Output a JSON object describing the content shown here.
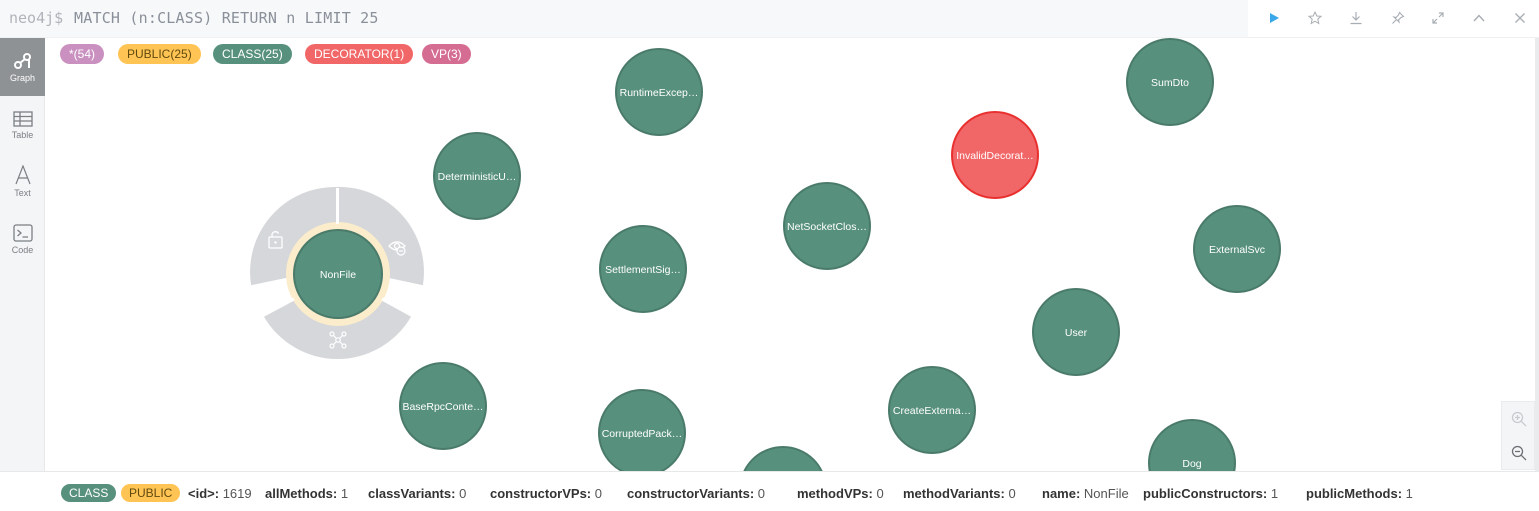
{
  "query": {
    "prompt": "neo4j$",
    "text": "MATCH (n:CLASS) RETURN n LIMIT 25"
  },
  "toolbar": {
    "icons": [
      "play-icon",
      "star-icon",
      "download-icon",
      "pin-icon",
      "expand-icon",
      "collapse-icon",
      "close-icon"
    ]
  },
  "sidebar": {
    "items": [
      {
        "label": "Graph",
        "icon": "graph-icon",
        "active": true
      },
      {
        "label": "Table",
        "icon": "table-icon",
        "active": false
      },
      {
        "label": "Text",
        "icon": "text-icon",
        "active": false
      },
      {
        "label": "Code",
        "icon": "code-icon",
        "active": false
      }
    ]
  },
  "labels": [
    {
      "text": "*(54)",
      "bg": "#c990c0",
      "fg": "#ffffff"
    },
    {
      "text": "PUBLIC(25)",
      "bg": "#ffc454",
      "fg": "#604a0e"
    },
    {
      "text": "CLASS(25)",
      "bg": "#57907d",
      "fg": "#ffffff"
    },
    {
      "text": "DECORATOR(1)",
      "bg": "#f16667",
      "fg": "#ffffff"
    },
    {
      "text": "VP(3)",
      "bg": "#d56d92",
      "fg": "#ffffff"
    }
  ],
  "graph": {
    "node_fill": "#57907d",
    "node_stroke": "#4a7b6a",
    "decorator_fill": "#f16667",
    "decorator_stroke": "#e8312f",
    "nodes": [
      {
        "label": "RuntimeExcep…",
        "kind": "class"
      },
      {
        "label": "SumDto",
        "kind": "class"
      },
      {
        "label": "DeterministicU…",
        "kind": "class"
      },
      {
        "label": "InvalidDecorat…",
        "kind": "decorator"
      },
      {
        "label": "NetSocketClos…",
        "kind": "class"
      },
      {
        "label": "SettlementSig…",
        "kind": "class"
      },
      {
        "label": "ExternalSvc",
        "kind": "class"
      },
      {
        "label": "NonFile",
        "kind": "class",
        "selected": true
      },
      {
        "label": "User",
        "kind": "class"
      },
      {
        "label": "BaseRpcConte…",
        "kind": "class"
      },
      {
        "label": "CreateExterna…",
        "kind": "class"
      },
      {
        "label": "CorruptedPack…",
        "kind": "class"
      },
      {
        "label": "Dog",
        "kind": "class"
      },
      {
        "label": "",
        "kind": "class"
      }
    ],
    "ring_icons": [
      "unlock-icon",
      "hide-eye-icon",
      "expand-graph-icon"
    ]
  },
  "zoom": {
    "icons": [
      "zoom-in-icon",
      "zoom-out-icon"
    ]
  },
  "selected": {
    "labels": [
      {
        "text": "CLASS",
        "bg": "#57907d",
        "fg": "#ffffff"
      },
      {
        "text": "PUBLIC",
        "bg": "#ffc454",
        "fg": "#604a0e"
      }
    ],
    "properties": [
      {
        "key": "<id>:",
        "value": "1619"
      },
      {
        "key": "allMethods:",
        "value": "1"
      },
      {
        "key": "classVariants:",
        "value": "0"
      },
      {
        "key": "constructorVPs:",
        "value": "0"
      },
      {
        "key": "constructorVariants:",
        "value": "0"
      },
      {
        "key": "methodVPs:",
        "value": "0"
      },
      {
        "key": "methodVariants:",
        "value": "0"
      },
      {
        "key": "name:",
        "value": "NonFile"
      },
      {
        "key": "publicConstructors:",
        "value": "1"
      },
      {
        "key": "publicMethods:",
        "value": "1"
      }
    ]
  }
}
